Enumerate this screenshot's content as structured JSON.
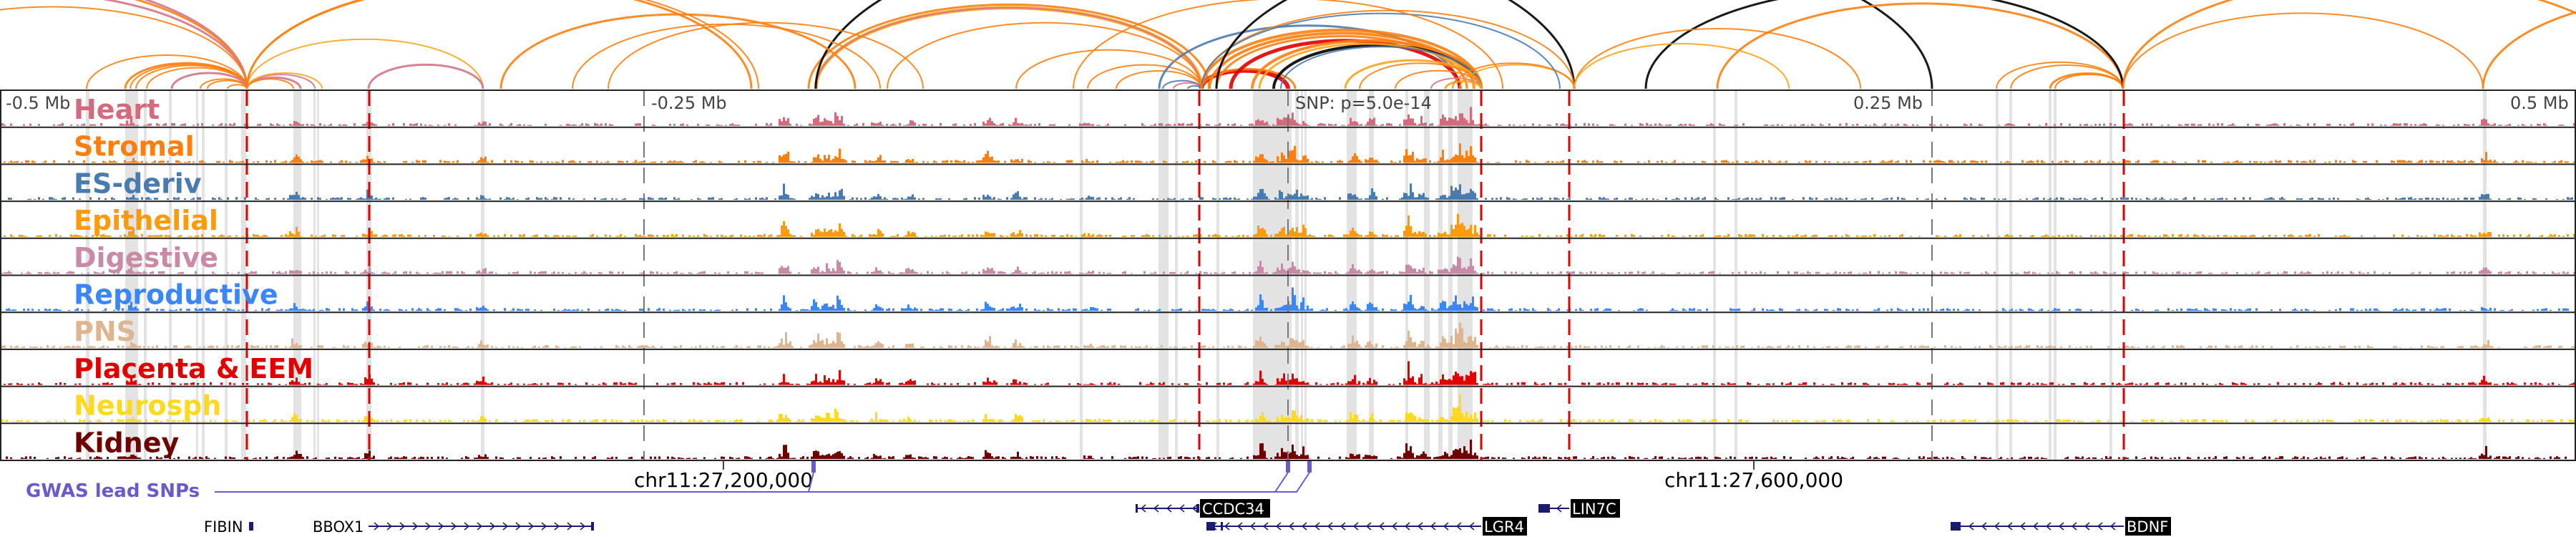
{
  "axis": {
    "left_far": "-0.5 Mb",
    "left_near": "-0.25 Mb",
    "snp": "SNP: p=5.0e-14",
    "right_near": "0.25 Mb",
    "right_far": "0.5 Mb"
  },
  "tracks": [
    {
      "label": "Heart",
      "color": "#d46a7e"
    },
    {
      "label": "Stromal",
      "color": "#ff7f0e"
    },
    {
      "label": "ES-deriv",
      "color": "#4a7bb0"
    },
    {
      "label": "Epithelial",
      "color": "#ff9a0a"
    },
    {
      "label": "Digestive",
      "color": "#c98aa8"
    },
    {
      "label": "Reproductive",
      "color": "#3a86ff"
    },
    {
      "label": "PNS",
      "color": "#deb58f"
    },
    {
      "label": "Placenta & EEM",
      "color": "#e00000"
    },
    {
      "label": "Neurosph",
      "color": "#ffd920"
    },
    {
      "label": "Kidney",
      "color": "#6e0000"
    }
  ],
  "coordinates": {
    "tick1": "chr11:27,200,000",
    "tick2": "chr11:27,600,000"
  },
  "gwas": {
    "label": "GWAS lead SNPs",
    "color": "#6a5acd"
  },
  "genes": {
    "fibin": "FIBIN",
    "bbox1": "BBOX1",
    "ccdc34": "CCDC34",
    "lin7c": "LIN7C",
    "lgr4": "LGR4",
    "bdnf": "BDNF"
  },
  "colors": {
    "highlight": "#e00000",
    "gene": "#1c1c6e",
    "shade": "#e3e3e3"
  }
}
